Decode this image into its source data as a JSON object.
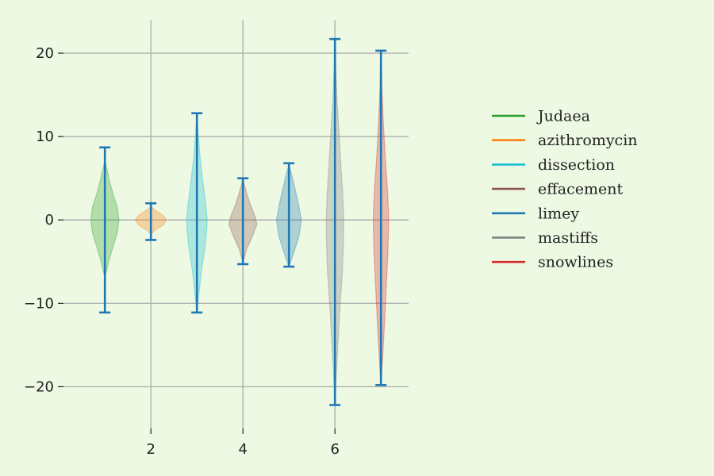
{
  "chart_data": {
    "type": "violin",
    "title": "",
    "xlabel": "",
    "ylabel": "",
    "xlim": [
      0.1,
      7.6
    ],
    "ylim": [
      -25,
      24
    ],
    "x_ticks": [
      2,
      4,
      6
    ],
    "y_ticks": [
      -20,
      -10,
      0,
      10,
      20
    ],
    "y_tick_labels": [
      "−20",
      "−10",
      "0",
      "10",
      "20"
    ],
    "grid": true,
    "legend_position": "right",
    "whisker_color": "#1f77b4",
    "series": [
      {
        "name": "Judaea",
        "x": 1,
        "color": "#2ca02c",
        "min": -11.1,
        "max": 8.7,
        "profile": [
          [
            -6.8,
            0.01
          ],
          [
            -5,
            0.12
          ],
          [
            -3,
            0.28
          ],
          [
            -1.5,
            0.4
          ],
          [
            0,
            0.45
          ],
          [
            1.5,
            0.4
          ],
          [
            3,
            0.27
          ],
          [
            4.5,
            0.16
          ],
          [
            6,
            0.07
          ],
          [
            7,
            0.01
          ]
        ]
      },
      {
        "name": "azithromycin",
        "x": 2,
        "color": "#ff7f0e",
        "min": -2.4,
        "max": 2.0,
        "profile": [
          [
            -1.7,
            0.01
          ],
          [
            -1.2,
            0.13
          ],
          [
            -0.6,
            0.4
          ],
          [
            0,
            0.5
          ],
          [
            0.6,
            0.38
          ],
          [
            1.2,
            0.12
          ],
          [
            1.6,
            0.01
          ]
        ]
      },
      {
        "name": "dissection",
        "x": 3,
        "color": "#17becf",
        "min": -11.1,
        "max": 12.8,
        "profile": [
          [
            -10.8,
            0.01
          ],
          [
            -9,
            0.06
          ],
          [
            -6,
            0.15
          ],
          [
            -3,
            0.27
          ],
          [
            -1,
            0.32
          ],
          [
            0,
            0.33
          ],
          [
            2,
            0.28
          ],
          [
            4,
            0.21
          ],
          [
            6,
            0.15
          ],
          [
            8,
            0.09
          ],
          [
            10,
            0.05
          ],
          [
            12,
            0.01
          ]
        ]
      },
      {
        "name": "effacement",
        "x": 4,
        "color": "#8c564b",
        "min": -5.3,
        "max": 5.0,
        "profile": [
          [
            -5,
            0.01
          ],
          [
            -3.5,
            0.12
          ],
          [
            -2,
            0.3
          ],
          [
            -0.5,
            0.45
          ],
          [
            0.5,
            0.38
          ],
          [
            2,
            0.22
          ],
          [
            3.5,
            0.1
          ],
          [
            4.8,
            0.01
          ]
        ]
      },
      {
        "name": "limey",
        "x": 5,
        "color": "#1f77b4",
        "min": -5.6,
        "max": 6.8,
        "profile": [
          [
            -5.5,
            0.01
          ],
          [
            -4,
            0.15
          ],
          [
            -2,
            0.32
          ],
          [
            0,
            0.4
          ],
          [
            2,
            0.3
          ],
          [
            4,
            0.18
          ],
          [
            5.5,
            0.08
          ],
          [
            6.5,
            0.01
          ]
        ]
      },
      {
        "name": "mastiffs",
        "x": 6,
        "color": "#7f7f7f",
        "min": -22.2,
        "max": 21.7,
        "profile": [
          [
            -21.5,
            0.01
          ],
          [
            -18,
            0.05
          ],
          [
            -14,
            0.11
          ],
          [
            -10,
            0.17
          ],
          [
            -6,
            0.24
          ],
          [
            -3,
            0.27
          ],
          [
            0,
            0.28
          ],
          [
            3,
            0.25
          ],
          [
            6,
            0.2
          ],
          [
            10,
            0.14
          ],
          [
            14,
            0.07
          ],
          [
            18,
            0.03
          ],
          [
            21,
            0.01
          ]
        ]
      },
      {
        "name": "snowlines",
        "x": 7,
        "color": "#d62728",
        "min": -19.8,
        "max": 20.3,
        "profile": [
          [
            -19.5,
            0.01
          ],
          [
            -16,
            0.06
          ],
          [
            -12,
            0.12
          ],
          [
            -8,
            0.17
          ],
          [
            -4,
            0.22
          ],
          [
            -1,
            0.24
          ],
          [
            1,
            0.24
          ],
          [
            4,
            0.2
          ],
          [
            8,
            0.13
          ],
          [
            12,
            0.07
          ],
          [
            16,
            0.03
          ],
          [
            19.5,
            0.01
          ]
        ]
      }
    ]
  }
}
